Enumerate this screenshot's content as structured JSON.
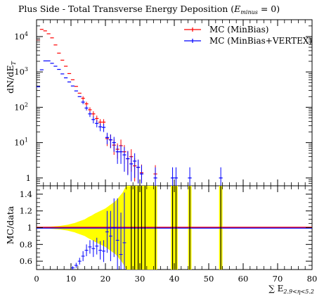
{
  "chart_data": [
    {
      "type": "scatter",
      "title": "Plus Side - Total Transverse Energy Deposition (",
      "title_math": {
        "base": "E",
        "sub": "minus",
        "rest": " = 0)"
      },
      "ylabel": {
        "base": "dN/dE",
        "sub": "T"
      },
      "yscale": "log",
      "ylim": [
        0.6,
        30000
      ],
      "xlim": [
        0,
        80
      ],
      "ytick_labels": [
        {
          "value": 10000,
          "base": "10",
          "exp": "4"
        },
        {
          "value": 1000,
          "base": "10",
          "exp": "3"
        },
        {
          "value": 100,
          "base": "10",
          "exp": "2"
        },
        {
          "value": 10,
          "base": "10",
          "exp": "1"
        },
        {
          "value": 1,
          "base": "1",
          "exp": ""
        }
      ],
      "legend_position": "top-right",
      "series": [
        {
          "name": "MC (MinBias)",
          "color": "#ff0000",
          "points": [
            [
              0.5,
              8000,
              0,
              0
            ],
            [
              1.5,
              16000,
              0,
              0
            ],
            [
              2.5,
              14500,
              0,
              0
            ],
            [
              3.5,
              12000,
              0,
              0
            ],
            [
              4.5,
              9200,
              0,
              0
            ],
            [
              5.5,
              5800,
              0,
              0
            ],
            [
              6.5,
              3400,
              0,
              0
            ],
            [
              7.5,
              2150,
              0,
              0
            ],
            [
              8.5,
              1450,
              0,
              0
            ],
            [
              9.5,
              900,
              0,
              0
            ],
            [
              10.5,
              600,
              0,
              0
            ],
            [
              11.5,
              390,
              0,
              0
            ],
            [
              12.5,
              250,
              0,
              0
            ],
            [
              13.5,
              180,
              25,
              25
            ],
            [
              14.5,
              125,
              18,
              18
            ],
            [
              15.5,
              85,
              15,
              15
            ],
            [
              16.5,
              65,
              12,
              12
            ],
            [
              17.5,
              48,
              10,
              10
            ],
            [
              18.5,
              38,
              8,
              8
            ],
            [
              19.5,
              38,
              8,
              8
            ],
            [
              20.5,
              13,
              5,
              5
            ],
            [
              21.5,
              12,
              5,
              5
            ],
            [
              22.5,
              8.5,
              4,
              4
            ],
            [
              23.5,
              6.5,
              3,
              3
            ],
            [
              24.5,
              8.2,
              4,
              4
            ],
            [
              25.5,
              5.5,
              3,
              3
            ],
            [
              26.5,
              3.5,
              2.2,
              2.2
            ],
            [
              27.5,
              4,
              2.5,
              2.5
            ],
            [
              28.5,
              2.2,
              1.4,
              1.4
            ],
            [
              29.5,
              2,
              1.3,
              1.3
            ],
            [
              30.5,
              1.4,
              1,
              0.6
            ],
            [
              34.5,
              1.3,
              1,
              0.5
            ]
          ]
        },
        {
          "name": "MC (MinBias+VERTEX)",
          "color": "#0000ff",
          "points": [
            [
              0.5,
              380,
              0,
              0
            ],
            [
              1.5,
              1150,
              0,
              0
            ],
            [
              2.5,
              2050,
              0,
              0
            ],
            [
              3.5,
              2050,
              0,
              0
            ],
            [
              4.5,
              1750,
              0,
              0
            ],
            [
              5.5,
              1450,
              0,
              0
            ],
            [
              6.5,
              1180,
              0,
              0
            ],
            [
              7.5,
              880,
              0,
              0
            ],
            [
              8.5,
              680,
              0,
              0
            ],
            [
              9.5,
              520,
              0,
              0
            ],
            [
              10.5,
              400,
              0,
              0
            ],
            [
              11.5,
              290,
              0,
              0
            ],
            [
              12.5,
              200,
              0,
              0
            ],
            [
              13.5,
              140,
              18,
              18
            ],
            [
              14.5,
              95,
              14,
              14
            ],
            [
              15.5,
              65,
              12,
              12
            ],
            [
              16.5,
              45,
              10,
              10
            ],
            [
              17.5,
              35,
              8,
              8
            ],
            [
              18.5,
              28,
              7,
              7
            ],
            [
              19.5,
              27,
              7,
              7
            ],
            [
              20.5,
              14,
              5,
              5
            ],
            [
              21.5,
              12,
              5,
              5
            ],
            [
              22.5,
              10,
              4.5,
              4.5
            ],
            [
              23.5,
              5.5,
              3,
              3
            ],
            [
              24.5,
              5.5,
              3,
              3
            ],
            [
              25.5,
              4.5,
              3,
              3
            ],
            [
              26.5,
              3.5,
              2.3,
              2.3
            ],
            [
              27.5,
              2.5,
              1.7,
              1.7
            ],
            [
              28.5,
              3,
              2,
              2
            ],
            [
              29.5,
              2,
              1.3,
              1.3
            ],
            [
              30.5,
              1.3,
              1,
              0.6
            ],
            [
              34.5,
              1,
              1,
              0.45
            ],
            [
              39.5,
              1,
              1,
              0.45
            ],
            [
              40.5,
              1,
              1,
              0.45
            ],
            [
              44.5,
              1,
              1,
              0.45
            ],
            [
              53.5,
              1,
              1,
              0.45
            ]
          ]
        }
      ]
    },
    {
      "type": "scatter",
      "ylabel": "MC/data",
      "xlabel": {
        "prefix": "∑ E",
        "sub": "2.9<η<5.2"
      },
      "xlim": [
        0,
        80
      ],
      "ylim": [
        0.5,
        1.5
      ],
      "yticks": [
        "1.4",
        "1.2",
        "1",
        "0.8",
        "0.6"
      ],
      "xticks": [
        "0",
        "10",
        "20",
        "30",
        "40",
        "50",
        "60",
        "70",
        "80"
      ],
      "band_color": "#ffff00",
      "band_halfwidth": [
        [
          0,
          0.005
        ],
        [
          1,
          0.006
        ],
        [
          2,
          0.008
        ],
        [
          3,
          0.01
        ],
        [
          4,
          0.012
        ],
        [
          5,
          0.015
        ],
        [
          6,
          0.018
        ],
        [
          7,
          0.022
        ],
        [
          8,
          0.028
        ],
        [
          9,
          0.035
        ],
        [
          10,
          0.045
        ],
        [
          11,
          0.055
        ],
        [
          12,
          0.07
        ],
        [
          13,
          0.085
        ],
        [
          14,
          0.1
        ],
        [
          15,
          0.125
        ],
        [
          16,
          0.145
        ],
        [
          17,
          0.17
        ],
        [
          18,
          0.19
        ],
        [
          19,
          0.21
        ],
        [
          20,
          0.23
        ],
        [
          21,
          0.26
        ],
        [
          22,
          0.29
        ],
        [
          23,
          0.32
        ],
        [
          24,
          0.37
        ],
        [
          25,
          0.42
        ],
        [
          26,
          0.5
        ],
        [
          27,
          1
        ],
        [
          35,
          1
        ],
        [
          39,
          1
        ],
        [
          41,
          1
        ],
        [
          44,
          1
        ],
        [
          45,
          1
        ],
        [
          53,
          1
        ],
        [
          54,
          1
        ]
      ],
      "band_segments": [
        [
          0,
          35
        ],
        [
          39,
          41
        ],
        [
          44,
          45
        ],
        [
          53,
          54
        ]
      ],
      "ratio_series": [
        {
          "name": "MC (MinBias)",
          "color": "#ff0000",
          "line_value": 1
        },
        {
          "name": "MC (MinBias+VERTEX)",
          "color": "#0000ff",
          "line_value": 1,
          "points": [
            [
              10.5,
              0.52,
              0.02
            ],
            [
              11.5,
              0.55,
              0.03
            ],
            [
              12.5,
              0.6,
              0.04
            ],
            [
              13.5,
              0.66,
              0.06
            ],
            [
              14.5,
              0.73,
              0.07
            ],
            [
              15.5,
              0.77,
              0.08
            ],
            [
              16.5,
              0.75,
              0.1
            ],
            [
              17.5,
              0.78,
              0.1
            ],
            [
              18.5,
              0.73,
              0.11
            ],
            [
              19.5,
              0.72,
              0.13
            ],
            [
              20.5,
              0.95,
              0.25
            ],
            [
              21.5,
              0.9,
              0.3
            ],
            [
              22.5,
              1.0,
              0.35
            ],
            [
              23.5,
              0.85,
              0.5
            ],
            [
              24.5,
              0.68,
              0.5
            ],
            [
              25.5,
              0.82,
              0.6
            ]
          ],
          "vertical_bars_x": [
            27.5,
            28.5,
            29.5,
            30.5,
            31.5,
            34.5,
            39.5,
            40.5,
            44.5,
            53.5
          ]
        }
      ]
    }
  ]
}
